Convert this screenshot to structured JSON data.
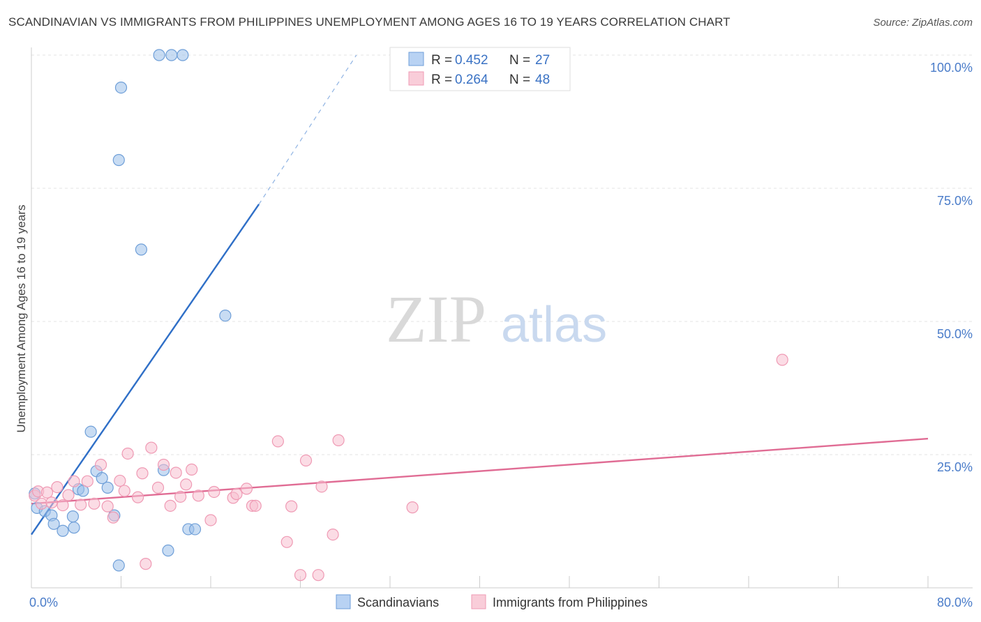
{
  "title": "SCANDINAVIAN VS IMMIGRANTS FROM PHILIPPINES UNEMPLOYMENT AMONG AGES 16 TO 19 YEARS CORRELATION CHART",
  "source": "Source: ZipAtlas.com",
  "watermark": {
    "zip": "ZIP",
    "atlas": "atlas"
  },
  "chart_data": {
    "type": "scatter",
    "xlabel": "",
    "ylabel": "Unemployment Among Ages 16 to 19 years",
    "xlim": [
      0,
      80
    ],
    "ylim": [
      0,
      100
    ],
    "x_tick_labels": [
      {
        "value": 0,
        "label": "0.0%"
      },
      {
        "value": 80,
        "label": "80.0%"
      }
    ],
    "y_tick_labels": [
      {
        "value": 100,
        "label": "100.0%"
      },
      {
        "value": 75,
        "label": "75.0%"
      },
      {
        "value": 50,
        "label": "50.0%"
      },
      {
        "value": 25,
        "label": "25.0%"
      }
    ],
    "y_gridlines": [
      100,
      75,
      50,
      25
    ],
    "x_minor_ticks": [
      8,
      16,
      24,
      32,
      40,
      48,
      56,
      64,
      72,
      80
    ],
    "legend": {
      "entries": [
        {
          "r_label": "R =",
          "r_value": "0.452",
          "n_label": "N =",
          "n_value": "27"
        },
        {
          "r_label": "R =",
          "r_value": "0.264",
          "n_label": "N =",
          "n_value": "48"
        }
      ]
    },
    "series": [
      {
        "name": "Scandinavians",
        "color": "#9bbfe9",
        "stroke": "#6f9fd8",
        "line_color": "#2f6fc7",
        "trend": {
          "x0": 0,
          "y0": 10.0,
          "x1": 20.3,
          "y1": 72.0,
          "dash_x1": 29.0,
          "dash_y1": 100.0
        },
        "points": [
          [
            0.3,
            17.7
          ],
          [
            0.5,
            15.0
          ],
          [
            1.2,
            14.4
          ],
          [
            1.8,
            13.6
          ],
          [
            2.0,
            12.0
          ],
          [
            2.8,
            10.7
          ],
          [
            3.7,
            13.4
          ],
          [
            3.8,
            11.3
          ],
          [
            4.2,
            18.5
          ],
          [
            4.6,
            18.2
          ],
          [
            5.3,
            29.3
          ],
          [
            5.8,
            21.9
          ],
          [
            6.3,
            20.6
          ],
          [
            6.8,
            18.8
          ],
          [
            7.4,
            13.6
          ],
          [
            7.8,
            4.2
          ],
          [
            8.0,
            93.9
          ],
          [
            7.8,
            80.3
          ],
          [
            9.8,
            63.5
          ],
          [
            11.4,
            100.0
          ],
          [
            12.5,
            100.0
          ],
          [
            13.5,
            100.0
          ],
          [
            11.8,
            22.1
          ],
          [
            12.2,
            7.0
          ],
          [
            14.0,
            11.0
          ],
          [
            14.6,
            11.0
          ],
          [
            17.3,
            51.1
          ]
        ]
      },
      {
        "name": "Immigrants from Philippines",
        "color": "#f7bfd0",
        "stroke": "#ef9ab4",
        "line_color": "#e06c94",
        "trend": {
          "x0": 0,
          "y0": 15.8,
          "x1": 80,
          "y1": 28.0
        },
        "points": [
          [
            0.3,
            17.3
          ],
          [
            0.6,
            18.1
          ],
          [
            0.9,
            15.8
          ],
          [
            1.4,
            17.9
          ],
          [
            1.8,
            16.0
          ],
          [
            2.3,
            18.9
          ],
          [
            2.8,
            15.5
          ],
          [
            3.3,
            17.4
          ],
          [
            3.8,
            20.0
          ],
          [
            4.4,
            15.6
          ],
          [
            5.0,
            20.0
          ],
          [
            5.6,
            15.8
          ],
          [
            6.2,
            23.1
          ],
          [
            6.8,
            15.3
          ],
          [
            7.3,
            13.2
          ],
          [
            7.9,
            20.1
          ],
          [
            8.3,
            18.2
          ],
          [
            8.6,
            25.2
          ],
          [
            9.5,
            17.0
          ],
          [
            9.9,
            21.5
          ],
          [
            10.2,
            4.5
          ],
          [
            10.7,
            26.3
          ],
          [
            11.3,
            18.8
          ],
          [
            11.8,
            23.1
          ],
          [
            12.4,
            15.4
          ],
          [
            12.9,
            21.6
          ],
          [
            13.3,
            17.1
          ],
          [
            13.8,
            19.4
          ],
          [
            14.3,
            22.2
          ],
          [
            14.9,
            17.3
          ],
          [
            16.0,
            12.7
          ],
          [
            16.3,
            18.0
          ],
          [
            18.0,
            16.9
          ],
          [
            18.3,
            17.6
          ],
          [
            19.2,
            18.6
          ],
          [
            19.7,
            15.4
          ],
          [
            20.0,
            15.4
          ],
          [
            22.0,
            27.5
          ],
          [
            22.8,
            8.6
          ],
          [
            23.2,
            15.3
          ],
          [
            24.0,
            2.4
          ],
          [
            24.5,
            23.9
          ],
          [
            25.6,
            2.4
          ],
          [
            25.9,
            19.0
          ],
          [
            26.9,
            10.0
          ],
          [
            27.4,
            27.7
          ],
          [
            34.0,
            15.1
          ],
          [
            67.0,
            42.8
          ]
        ]
      }
    ]
  },
  "bottom_legend": [
    {
      "label": "Scandinavians"
    },
    {
      "label": "Immigrants from Philippines"
    }
  ]
}
